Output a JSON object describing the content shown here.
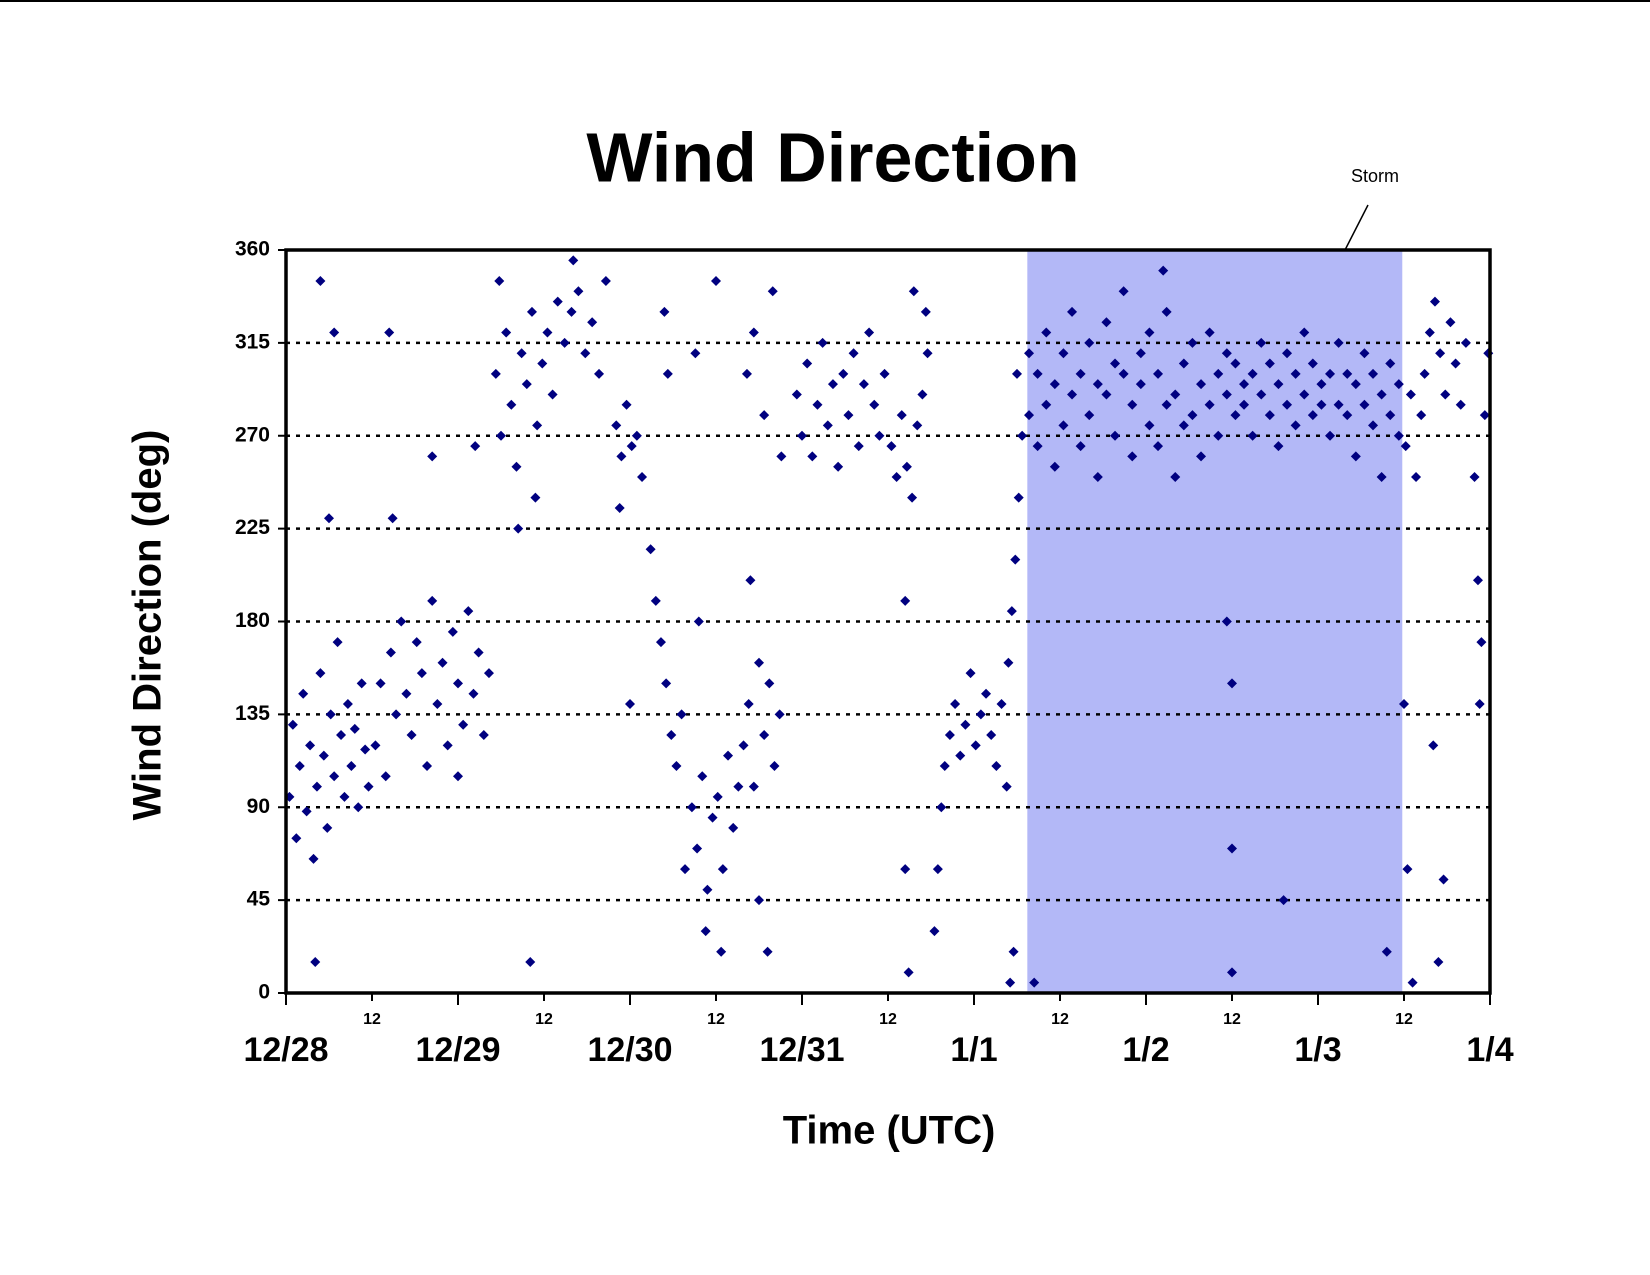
{
  "chart_data": {
    "type": "scatter",
    "title": "Wind Direction",
    "x_label": "Time (UTC)",
    "y_label": "Wind Direction (deg)",
    "color": "#000080",
    "grid": true,
    "xlim": [
      0,
      7
    ],
    "ylim": [
      0,
      360
    ],
    "yticks": [
      0,
      45,
      90,
      135,
      180,
      225,
      270,
      315,
      360
    ],
    "xticks": [
      {
        "value": 0,
        "label": "12/28"
      },
      {
        "value": 1,
        "label": "12/29"
      },
      {
        "value": 2,
        "label": "12/30"
      },
      {
        "value": 3,
        "label": "12/31"
      },
      {
        "value": 4,
        "label": "1/1"
      },
      {
        "value": 5,
        "label": "1/2"
      },
      {
        "value": 6,
        "label": "1/3"
      },
      {
        "value": 7,
        "label": "1/4"
      }
    ],
    "xticks_minor": [
      {
        "value": 0.5,
        "label": "12"
      },
      {
        "value": 1.5,
        "label": "12"
      },
      {
        "value": 2.5,
        "label": "12"
      },
      {
        "value": 3.5,
        "label": "12"
      },
      {
        "value": 4.5,
        "label": "12"
      },
      {
        "value": 5.5,
        "label": "12"
      },
      {
        "value": 6.5,
        "label": "12"
      }
    ],
    "highlight": {
      "label": "Storm",
      "xlim": [
        4.31,
        6.49
      ],
      "color": "#b3b8f7"
    },
    "x": [
      0.02,
      0.04,
      0.06,
      0.08,
      0.1,
      0.12,
      0.14,
      0.16,
      0.18,
      0.2,
      0.22,
      0.24,
      0.26,
      0.28,
      0.3,
      0.32,
      0.34,
      0.36,
      0.38,
      0.4,
      0.42,
      0.44,
      0.46,
      0.48,
      0.2,
      0.17,
      0.25,
      0.28,
      0.52,
      0.55,
      0.58,
      0.61,
      0.64,
      0.67,
      0.7,
      0.73,
      0.76,
      0.79,
      0.82,
      0.85,
      0.88,
      0.91,
      0.94,
      0.97,
      1.0,
      1.03,
      1.06,
      1.09,
      1.12,
      1.15,
      1.18,
      0.62,
      0.6,
      0.85,
      1.0,
      1.1,
      1.22,
      1.25,
      1.28,
      1.31,
      1.34,
      1.37,
      1.4,
      1.43,
      1.46,
      1.49,
      1.52,
      1.55,
      1.58,
      1.24,
      1.45,
      1.35,
      1.42,
      1.62,
      1.66,
      1.7,
      1.74,
      1.78,
      1.82,
      1.86,
      1.67,
      1.92,
      1.95,
      1.98,
      2.01,
      2.04,
      2.07,
      1.94,
      2.0,
      2.12,
      2.15,
      2.18,
      2.21,
      2.24,
      2.27,
      2.3,
      2.22,
      2.32,
      2.2,
      2.36,
      2.39,
      2.42,
      2.45,
      2.48,
      2.51,
      2.54,
      2.57,
      2.6,
      2.63,
      2.44,
      2.53,
      2.4,
      2.38,
      2.5,
      2.66,
      2.69,
      2.72,
      2.75,
      2.78,
      2.81,
      2.84,
      2.87,
      2.7,
      2.75,
      2.8,
      2.68,
      2.72,
      2.78,
      2.83,
      2.88,
      2.97,
      3.0,
      3.03,
      3.06,
      3.09,
      3.12,
      3.15,
      3.18,
      3.21,
      3.24,
      3.27,
      3.3,
      3.33,
      3.36,
      3.39,
      3.42,
      3.45,
      3.48,
      3.52,
      3.55,
      3.58,
      3.61,
      3.64,
      3.67,
      3.7,
      3.73,
      3.6,
      3.6,
      3.62,
      3.65,
      3.72,
      3.77,
      3.79,
      3.81,
      3.83,
      3.86,
      3.89,
      3.92,
      3.95,
      3.98,
      4.01,
      4.04,
      4.07,
      4.1,
      4.13,
      4.16,
      4.19,
      4.2,
      4.22,
      4.24,
      4.26,
      4.28,
      4.23,
      4.25,
      4.21,
      4.32,
      4.32,
      4.37,
      4.37,
      4.42,
      4.42,
      4.47,
      4.47,
      4.52,
      4.52,
      4.57,
      4.57,
      4.62,
      4.62,
      4.67,
      4.67,
      4.72,
      4.72,
      4.77,
      4.77,
      4.82,
      4.82,
      4.87,
      4.87,
      4.92,
      4.92,
      4.97,
      4.97,
      5.02,
      5.02,
      5.07,
      5.07,
      5.12,
      5.12,
      5.17,
      5.17,
      5.22,
      5.22,
      5.27,
      5.27,
      5.32,
      5.32,
      5.37,
      5.37,
      5.42,
      5.42,
      5.47,
      5.47,
      5.52,
      5.52,
      5.57,
      5.57,
      5.62,
      5.62,
      5.67,
      5.67,
      5.72,
      5.72,
      5.77,
      5.77,
      5.82,
      5.82,
      5.87,
      5.87,
      5.92,
      5.92,
      5.97,
      5.97,
      6.02,
      6.02,
      6.07,
      6.07,
      6.12,
      6.12,
      6.17,
      6.17,
      6.22,
      6.22,
      6.27,
      6.27,
      6.32,
      6.32,
      6.37,
      6.37,
      6.42,
      6.42,
      6.47,
      6.47,
      5.5,
      5.5,
      5.5,
      5.1,
      4.35,
      5.8,
      6.4,
      5.47,
      6.51,
      6.54,
      6.57,
      6.6,
      6.52,
      6.55,
      6.5,
      6.62,
      6.65,
      6.68,
      6.71,
      6.74,
      6.77,
      6.8,
      6.83,
      6.86,
      6.67,
      6.7,
      6.73,
      6.91,
      6.93,
      6.95,
      6.97,
      6.99,
      6.94
    ],
    "values": [
      95,
      130,
      75,
      110,
      145,
      88,
      120,
      65,
      100,
      155,
      115,
      80,
      135,
      105,
      170,
      125,
      95,
      140,
      110,
      128,
      90,
      150,
      118,
      100,
      345,
      15,
      230,
      320,
      120,
      150,
      105,
      165,
      135,
      180,
      145,
      125,
      170,
      155,
      110,
      190,
      140,
      160,
      120,
      175,
      150,
      130,
      185,
      145,
      165,
      125,
      155,
      230,
      320,
      260,
      105,
      265,
      300,
      270,
      320,
      285,
      255,
      310,
      295,
      330,
      275,
      305,
      320,
      290,
      335,
      345,
      240,
      225,
      15,
      315,
      330,
      340,
      310,
      325,
      300,
      345,
      355,
      275,
      260,
      285,
      265,
      270,
      250,
      235,
      140,
      215,
      190,
      170,
      150,
      125,
      110,
      135,
      300,
      60,
      330,
      90,
      70,
      105,
      50,
      85,
      95,
      60,
      115,
      80,
      100,
      30,
      20,
      180,
      310,
      345,
      120,
      140,
      100,
      160,
      125,
      150,
      110,
      135,
      200,
      45,
      20,
      300,
      320,
      280,
      340,
      260,
      290,
      270,
      305,
      260,
      285,
      315,
      275,
      295,
      255,
      300,
      280,
      310,
      265,
      295,
      320,
      285,
      270,
      300,
      265,
      250,
      280,
      255,
      240,
      275,
      290,
      310,
      190,
      60,
      10,
      340,
      330,
      30,
      60,
      90,
      110,
      125,
      140,
      115,
      130,
      155,
      120,
      135,
      145,
      125,
      110,
      140,
      100,
      160,
      185,
      210,
      240,
      270,
      20,
      300,
      5,
      280,
      310,
      300,
      265,
      320,
      285,
      295,
      255,
      310,
      275,
      290,
      330,
      265,
      300,
      315,
      280,
      295,
      250,
      325,
      290,
      270,
      305,
      300,
      340,
      285,
      260,
      310,
      295,
      275,
      320,
      300,
      265,
      330,
      285,
      290,
      250,
      305,
      275,
      280,
      315,
      295,
      260,
      320,
      285,
      270,
      300,
      290,
      310,
      305,
      280,
      285,
      295,
      300,
      270,
      315,
      290,
      280,
      305,
      295,
      265,
      310,
      285,
      275,
      300,
      290,
      320,
      305,
      280,
      285,
      295,
      300,
      270,
      315,
      285,
      280,
      300,
      295,
      260,
      310,
      285,
      275,
      300,
      290,
      250,
      305,
      280,
      270,
      295,
      150,
      70,
      10,
      350,
      5,
      45,
      20,
      180,
      265,
      290,
      250,
      280,
      60,
      5,
      140,
      300,
      320,
      335,
      310,
      290,
      325,
      305,
      285,
      315,
      120,
      15,
      55,
      250,
      200,
      170,
      280,
      310,
      140
    ]
  }
}
